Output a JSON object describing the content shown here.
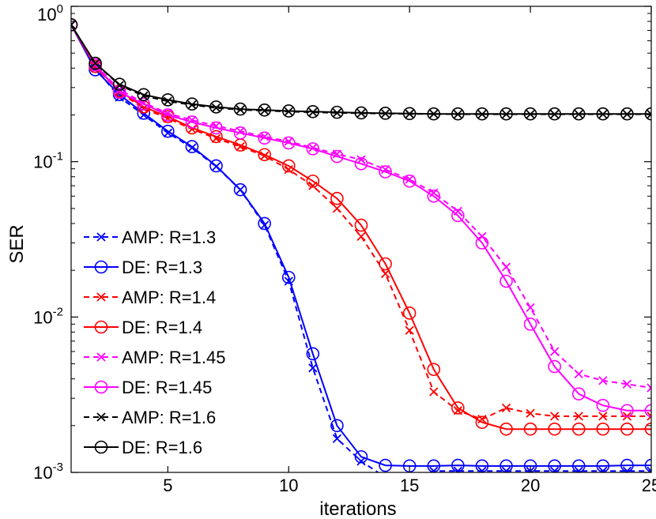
{
  "chart_data": {
    "type": "line",
    "xlabel": "iterations",
    "ylabel": "SER",
    "xlim": [
      1,
      25
    ],
    "ylim": [
      0.001,
      1
    ],
    "yscale": "log",
    "grid": false,
    "legend_position": "bottom-left",
    "x_ticks": [
      5,
      10,
      15,
      20,
      25
    ],
    "y_ticks": [
      {
        "base": "10",
        "exp": "-3",
        "value": 0.001
      },
      {
        "base": "10",
        "exp": "-2",
        "value": 0.01
      },
      {
        "base": "10",
        "exp": "-1",
        "value": 0.1
      },
      {
        "base": "10",
        "exp": "0",
        "value": 1
      }
    ],
    "x": [
      1,
      2,
      3,
      4,
      5,
      6,
      7,
      8,
      9,
      10,
      11,
      12,
      13,
      14,
      15,
      16,
      17,
      18,
      19,
      20,
      21,
      22,
      23,
      24,
      25
    ],
    "series": [
      {
        "name": "AMP: R=1.3",
        "color": "#0000ff",
        "dash": true,
        "marker": "x",
        "values": [
          0.76,
          0.4,
          0.26,
          0.2,
          0.153,
          0.123,
          0.093,
          0.066,
          0.039,
          0.017,
          0.0047,
          0.00165,
          0.00118,
          0.00093,
          0.00093,
          0.00102,
          0.00102,
          0.00102,
          0.00102,
          0.00102,
          0.00102,
          0.00102,
          0.00102,
          0.00102,
          0.00102
        ]
      },
      {
        "name": "DE: R=1.3",
        "color": "#0000ff",
        "dash": false,
        "marker": "o",
        "values": [
          0.76,
          0.39,
          0.27,
          0.205,
          0.157,
          0.125,
          0.094,
          0.066,
          0.04,
          0.018,
          0.0058,
          0.002,
          0.00126,
          0.00111,
          0.0011,
          0.0011,
          0.00111,
          0.0011,
          0.0011,
          0.0011,
          0.0011,
          0.0011,
          0.0011,
          0.00111,
          0.00111
        ]
      },
      {
        "name": "AMP: R=1.4",
        "color": "#ff0000",
        "dash": true,
        "marker": "x",
        "values": [
          0.76,
          0.41,
          0.28,
          0.22,
          0.19,
          0.162,
          0.141,
          0.125,
          0.109,
          0.089,
          0.07,
          0.05,
          0.033,
          0.019,
          0.0082,
          0.0033,
          0.0025,
          0.0022,
          0.0026,
          0.0024,
          0.0023,
          0.0023,
          0.0023,
          0.0023,
          0.0023
        ]
      },
      {
        "name": "DE: R=1.4",
        "color": "#ff0000",
        "dash": false,
        "marker": "o",
        "values": [
          0.76,
          0.41,
          0.285,
          0.225,
          0.195,
          0.165,
          0.145,
          0.128,
          0.111,
          0.094,
          0.075,
          0.058,
          0.039,
          0.022,
          0.0106,
          0.0046,
          0.0026,
          0.0021,
          0.0019,
          0.0019,
          0.0019,
          0.0019,
          0.0019,
          0.0019,
          0.0019
        ]
      },
      {
        "name": "AMP: R=1.45",
        "color": "#ff00ff",
        "dash": true,
        "marker": "x",
        "values": [
          0.76,
          0.42,
          0.29,
          0.24,
          0.205,
          0.185,
          0.17,
          0.157,
          0.145,
          0.135,
          0.123,
          0.112,
          0.103,
          0.089,
          0.077,
          0.063,
          0.048,
          0.033,
          0.021,
          0.0115,
          0.006,
          0.0043,
          0.0039,
          0.0037,
          0.0035
        ]
      },
      {
        "name": "DE: R=1.45",
        "color": "#ff00ff",
        "dash": false,
        "marker": "o",
        "values": [
          0.76,
          0.42,
          0.28,
          0.235,
          0.2,
          0.18,
          0.165,
          0.153,
          0.142,
          0.132,
          0.121,
          0.108,
          0.097,
          0.086,
          0.075,
          0.06,
          0.045,
          0.03,
          0.017,
          0.009,
          0.0048,
          0.0032,
          0.0027,
          0.0025,
          0.0025
        ]
      },
      {
        "name": "AMP: R=1.6",
        "color": "#000000",
        "dash": true,
        "marker": "x",
        "values": [
          0.76,
          0.43,
          0.31,
          0.265,
          0.245,
          0.232,
          0.222,
          0.216,
          0.213,
          0.21,
          0.208,
          0.206,
          0.205,
          0.204,
          0.203,
          0.203,
          0.202,
          0.202,
          0.202,
          0.202,
          0.202,
          0.202,
          0.202,
          0.202,
          0.202
        ]
      },
      {
        "name": "DE: R=1.6",
        "color": "#000000",
        "dash": false,
        "marker": "o",
        "values": [
          0.76,
          0.43,
          0.315,
          0.27,
          0.25,
          0.235,
          0.225,
          0.218,
          0.215,
          0.212,
          0.21,
          0.208,
          0.206,
          0.205,
          0.204,
          0.203,
          0.203,
          0.203,
          0.203,
          0.203,
          0.203,
          0.203,
          0.203,
          0.203,
          0.203
        ]
      }
    ]
  }
}
